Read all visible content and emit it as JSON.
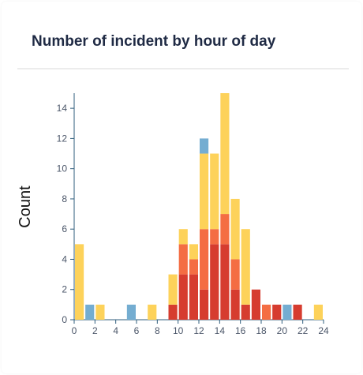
{
  "card": {
    "title": "Number of incident by hour of day"
  },
  "chart_data": {
    "type": "bar",
    "stacked": true,
    "title": "Number of incident by hour of day",
    "xlabel": "",
    "ylabel": "Count",
    "xlim": [
      0,
      24
    ],
    "ylim": [
      0,
      15
    ],
    "x_ticks": [
      0,
      2,
      4,
      6,
      8,
      10,
      12,
      14,
      16,
      18,
      20,
      22,
      24
    ],
    "y_ticks": [
      0,
      2,
      4,
      6,
      8,
      10,
      12,
      14
    ],
    "grid": false,
    "legend": "none",
    "x": [
      0,
      1,
      2,
      5,
      7,
      9,
      10,
      11,
      12,
      13,
      14,
      15,
      16,
      17,
      18,
      19,
      20,
      21,
      23
    ],
    "series": [
      {
        "color": "#d63c2f",
        "values": [
          0,
          0,
          0,
          0,
          0,
          1,
          3,
          3,
          2,
          5,
          5,
          2,
          1,
          2,
          0,
          1,
          0,
          1,
          0
        ]
      },
      {
        "color": "#f46d43",
        "values": [
          0,
          0,
          0,
          0,
          0,
          0,
          2,
          1,
          4,
          1,
          2,
          2,
          0,
          0,
          1,
          0,
          0,
          0,
          0
        ]
      },
      {
        "color": "#fdd25a",
        "values": [
          5,
          0,
          1,
          0,
          1,
          2,
          1,
          1,
          5,
          5,
          8,
          4,
          5,
          0,
          0,
          0,
          0,
          0,
          1
        ]
      },
      {
        "color": "#74add1",
        "values": [
          0,
          1,
          0,
          1,
          0,
          0,
          0,
          0,
          1,
          0,
          0,
          0,
          0,
          0,
          0,
          0,
          1,
          0,
          0
        ]
      }
    ]
  }
}
